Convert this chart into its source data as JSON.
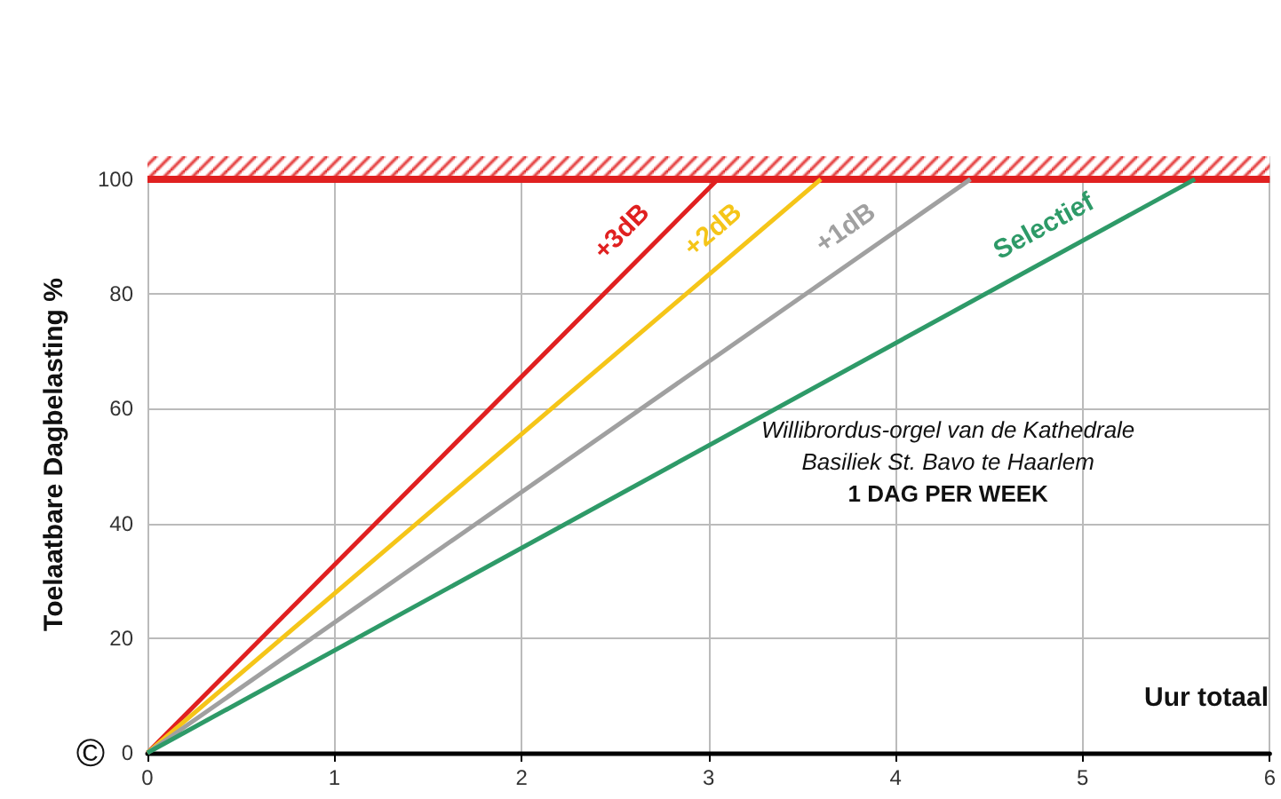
{
  "chart_data": {
    "type": "line",
    "xlabel": "Uur totaal",
    "ylabel": "Toelaatbare Dagbelasting %",
    "series": [
      {
        "name": "+3dB",
        "color": "#e02020",
        "x": [
          0,
          3.05
        ],
        "values": [
          0,
          100
        ]
      },
      {
        "name": "+2dB",
        "color": "#f5c518",
        "x": [
          0,
          3.6
        ],
        "values": [
          0,
          100
        ]
      },
      {
        "name": "+1dB",
        "color": "#a0a0a0",
        "x": [
          0,
          4.4
        ],
        "values": [
          0,
          100
        ]
      },
      {
        "name": "Selectief",
        "color": "#2e9a68",
        "x": [
          0,
          5.6
        ],
        "values": [
          0,
          100
        ]
      }
    ],
    "xlim": [
      0,
      6
    ],
    "xticks": [
      0,
      1,
      2,
      3,
      4,
      5,
      6
    ],
    "ylim": [
      0,
      104
    ],
    "yticks": [
      0,
      20,
      40,
      60,
      80,
      100
    ],
    "grid": true,
    "marker": "none",
    "line_style": "solid",
    "legend": false,
    "ref_lines": [
      {
        "axis": "y",
        "value": 100,
        "label": null,
        "color": "#e02020"
      }
    ],
    "bands": [
      {
        "axis": "y",
        "from": 100,
        "to": 104,
        "label": null,
        "color": "#e02020"
      }
    ],
    "annotations": [
      "Willibrordus-orgel van de Kathedrale",
      "Basiliek St. Bavo te Haarlem",
      "1 DAG PER WEEK",
      "©"
    ]
  }
}
